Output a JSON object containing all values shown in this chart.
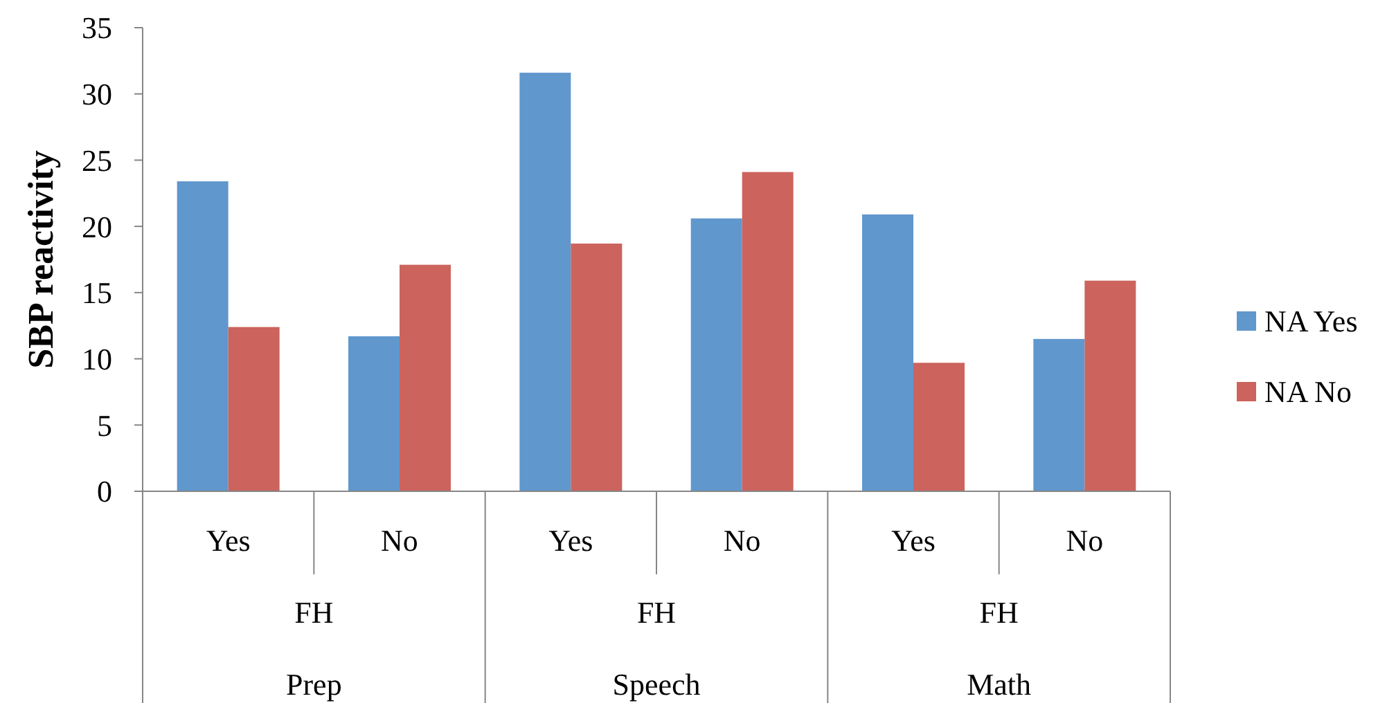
{
  "chart_data": {
    "type": "bar",
    "ylabel": "SBP reactivity",
    "categories": [
      "Yes",
      "No",
      "Yes",
      "No",
      "Yes",
      "No"
    ],
    "series": [
      {
        "name": "NA Yes",
        "color": "#6097cd",
        "values": [
          23.4,
          11.7,
          31.6,
          20.6,
          20.9,
          11.5
        ]
      },
      {
        "name": "NA No",
        "color": "#cc635d",
        "values": [
          12.4,
          17.1,
          18.7,
          24.1,
          9.7,
          15.9
        ]
      }
    ],
    "ylim": [
      0,
      35
    ],
    "yticks": [
      0,
      5,
      10,
      15,
      20,
      25,
      30,
      35
    ],
    "grid": false,
    "legend": "right",
    "annotations": [
      "FH",
      "FH",
      "FH",
      "Prep",
      "Speech",
      "Math"
    ]
  }
}
